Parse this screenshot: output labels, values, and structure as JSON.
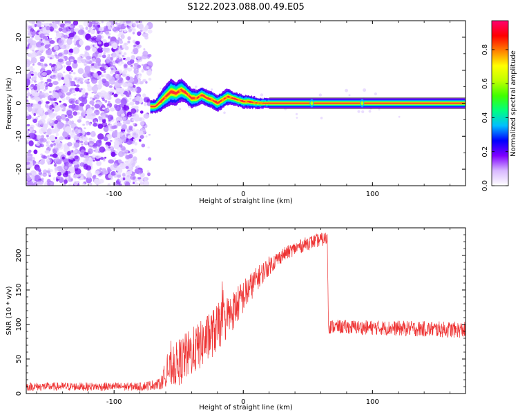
{
  "title": "S122.2023.088.00.49.E05",
  "chart_data": [
    {
      "type": "heatmap",
      "xlabel": "Height of straight line (km)",
      "ylabel": "Frequency (Hz)",
      "xlim": [
        -168,
        172
      ],
      "ylim": [
        -25,
        25
      ],
      "xticks": [
        -100,
        0,
        100
      ],
      "yticks": [
        -20,
        -10,
        0,
        10,
        20
      ],
      "grid": false,
      "colorbar": {
        "label": "Normalized spectral amplitude",
        "ticks": [
          0.0,
          0.2,
          0.4,
          0.6,
          0.8
        ],
        "range": [
          0.0,
          0.97
        ],
        "colors": [
          "#ffffff",
          "#d8b8ff",
          "#8000ff",
          "#0000ff",
          "#00bfff",
          "#00ff80",
          "#40ff00",
          "#c0ff00",
          "#ffff00",
          "#ff8000",
          "#ff0000",
          "#ff0070"
        ]
      },
      "noise_region_x": [
        -168,
        -72
      ],
      "ridge": [
        {
          "x": -72,
          "y": -1.0,
          "width": 2.0
        },
        {
          "x": -68,
          "y": -1.0,
          "width": 2.0
        },
        {
          "x": -64,
          "y": 0.5,
          "width": 3.0
        },
        {
          "x": -60,
          "y": 2.0,
          "width": 3.5
        },
        {
          "x": -56,
          "y": 3.5,
          "width": 4.0
        },
        {
          "x": -52,
          "y": 3.0,
          "width": 3.5
        },
        {
          "x": -48,
          "y": 4.0,
          "width": 3.5
        },
        {
          "x": -44,
          "y": 3.0,
          "width": 3.0
        },
        {
          "x": -40,
          "y": 1.5,
          "width": 3.0
        },
        {
          "x": -36,
          "y": 1.5,
          "width": 2.5
        },
        {
          "x": -32,
          "y": 2.5,
          "width": 2.5
        },
        {
          "x": -28,
          "y": 1.5,
          "width": 2.5
        },
        {
          "x": -24,
          "y": 1.0,
          "width": 2.5
        },
        {
          "x": -20,
          "y": 0.0,
          "width": 2.5
        },
        {
          "x": -16,
          "y": 1.0,
          "width": 2.5
        },
        {
          "x": -12,
          "y": 2.0,
          "width": 2.5
        },
        {
          "x": -8,
          "y": 1.5,
          "width": 2.0
        },
        {
          "x": -4,
          "y": 1.0,
          "width": 2.0
        },
        {
          "x": 0,
          "y": 0.5,
          "width": 2.0
        },
        {
          "x": 4,
          "y": 0.5,
          "width": 2.0
        },
        {
          "x": 8,
          "y": 0.2,
          "width": 1.8
        },
        {
          "x": 12,
          "y": 0.0,
          "width": 1.6
        },
        {
          "x": 16,
          "y": 0.0,
          "width": 1.5
        },
        {
          "x": 20,
          "y": 0.0,
          "width": 1.5
        },
        {
          "x": 172,
          "y": 0.0,
          "width": 1.5
        }
      ]
    },
    {
      "type": "line",
      "xlabel": "Height of straight line (km)",
      "ylabel": "SNR (10 * v/v)",
      "xlim": [
        -168,
        172
      ],
      "ylim": [
        0,
        240
      ],
      "xticks": [
        -100,
        0,
        100
      ],
      "yticks": [
        0,
        50,
        100,
        150,
        200
      ],
      "grid": false,
      "color": "#ee3333",
      "envelope": [
        {
          "x": -168,
          "y": 10,
          "noise": 6
        },
        {
          "x": -80,
          "y": 10,
          "noise": 6
        },
        {
          "x": -64,
          "y": 14,
          "noise": 8
        },
        {
          "x": -60,
          "y": 30,
          "noise": 20
        },
        {
          "x": -50,
          "y": 45,
          "noise": 35
        },
        {
          "x": -40,
          "y": 60,
          "noise": 35
        },
        {
          "x": -30,
          "y": 75,
          "noise": 35
        },
        {
          "x": -20,
          "y": 95,
          "noise": 35
        },
        {
          "x": -10,
          "y": 115,
          "noise": 30
        },
        {
          "x": 0,
          "y": 140,
          "noise": 25
        },
        {
          "x": 10,
          "y": 165,
          "noise": 18
        },
        {
          "x": 20,
          "y": 185,
          "noise": 14
        },
        {
          "x": 30,
          "y": 200,
          "noise": 10
        },
        {
          "x": 40,
          "y": 210,
          "noise": 10
        },
        {
          "x": 50,
          "y": 218,
          "noise": 10
        },
        {
          "x": 65,
          "y": 225,
          "noise": 10
        },
        {
          "x": 66,
          "y": 97,
          "noise": 10
        },
        {
          "x": 172,
          "y": 92,
          "noise": 12
        }
      ]
    }
  ]
}
